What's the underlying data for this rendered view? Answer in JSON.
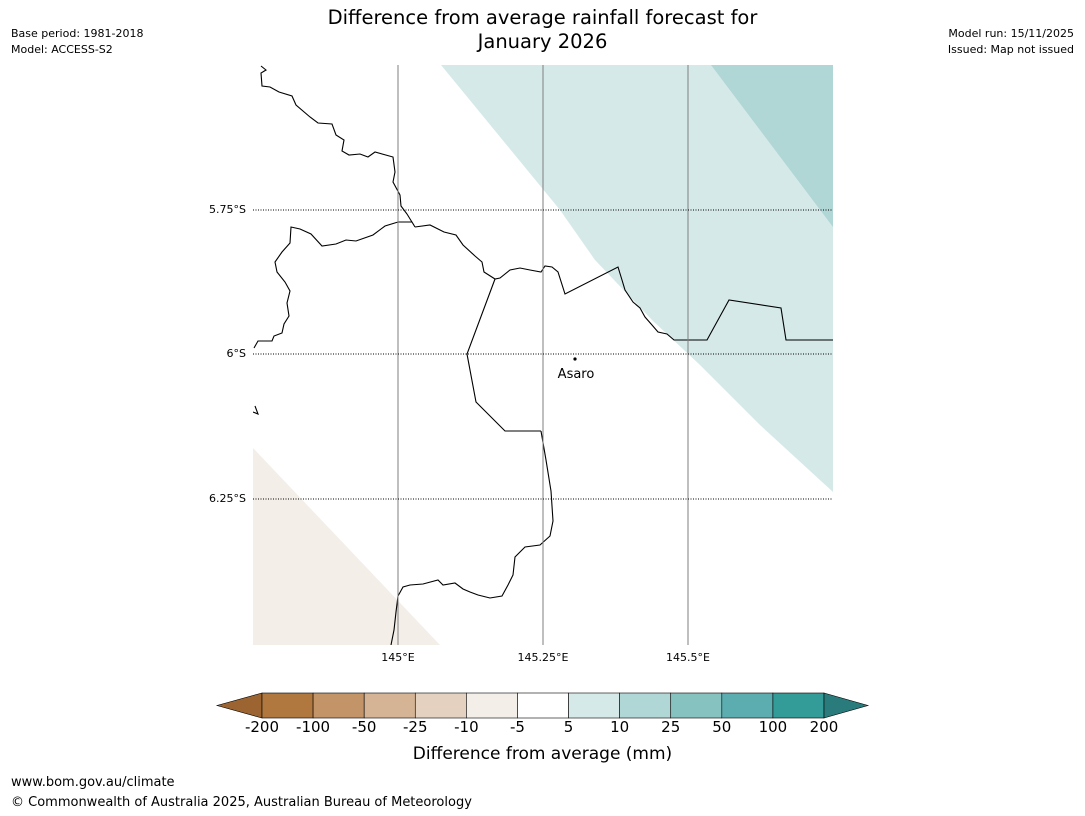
{
  "title_line1": "Difference from average rainfall forecast for",
  "title_line2": "January 2026",
  "meta": {
    "base_period": "Base period: 1981-2018",
    "model": "Model: ACCESS-S2",
    "model_run": "Model run: 15/11/2025",
    "issued": "Issued: Map not issued"
  },
  "map": {
    "lat_labels": [
      "5.75°S",
      "6°S",
      "6.25°S"
    ],
    "lon_labels": [
      "145°E",
      "145.25°E",
      "145.5°E"
    ],
    "town": "Asaro"
  },
  "colorbar": {
    "title": "Difference from average (mm)",
    "ticks": [
      "-200",
      "-100",
      "-50",
      "-25",
      "-10",
      "-5",
      "5",
      "10",
      "25",
      "50",
      "100",
      "200"
    ],
    "colors": [
      "#9c6430",
      "#b0773e",
      "#c39468",
      "#d5b495",
      "#e5d1bf",
      "#f3eee8",
      "#ffffff",
      "#d6e9e9",
      "#b0d6d6",
      "#86c2c0",
      "#5cadaf",
      "#339b98",
      "#2a7b7b"
    ]
  },
  "footer": {
    "url": "www.bom.gov.au/climate",
    "copyright": "© Commonwealth of Australia 2025, Australian Bureau of Meteorology"
  }
}
